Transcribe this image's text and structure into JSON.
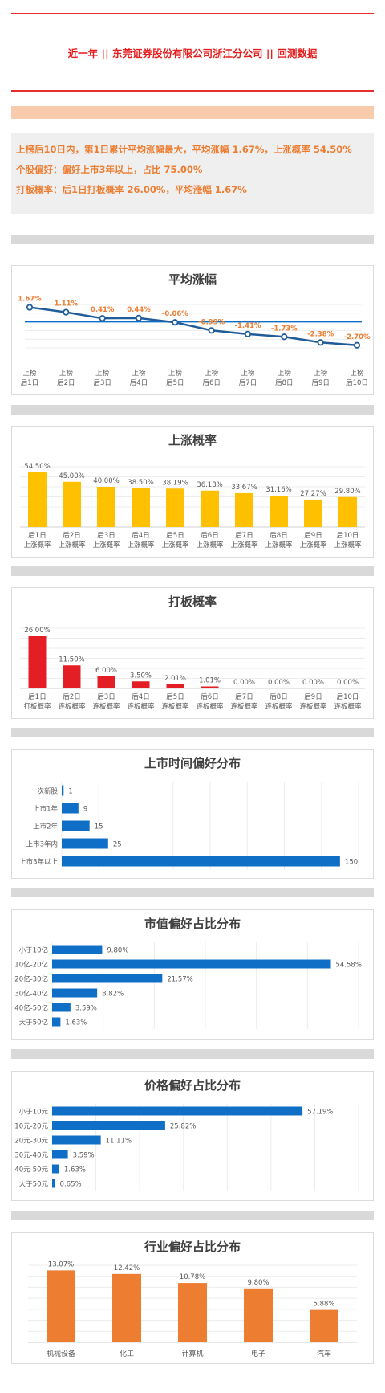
{
  "header": {
    "title": "近一年 || 东莞证券股份有限公司浙江分公司 || 回测数据"
  },
  "summary": {
    "line1": "上榜后10日内，第1日累计平均涨幅最大，平均涨幅 1.67%，上涨概率 54.50%",
    "line2": "个股偏好：偏好上市3年以上，占比 75.00%",
    "line3": "打板概率：后1日打板概率 26.00%，平均涨幅 1.67%"
  },
  "colors": {
    "accent_red": "#e61e1e",
    "line_blue": "#1f5c99",
    "bar_yellow": "#ffc000",
    "bar_red": "#e31e24",
    "bar_blue": "#0f6fc6",
    "bar_orange": "#ed7d31",
    "label_orange": "#ed7d31"
  },
  "chart_data": [
    {
      "id": "avg",
      "type": "line",
      "title": "平均涨幅",
      "categories": [
        "上榜后1日",
        "上榜后2日",
        "上榜后3日",
        "上榜后4日",
        "上榜后5日",
        "上榜后6日",
        "上榜后7日",
        "上榜后8日",
        "上榜后9日",
        "上榜后10日"
      ],
      "values": [
        1.67,
        1.11,
        0.41,
        0.44,
        -0.06,
        -0.99,
        -1.41,
        -1.73,
        -2.38,
        -2.7
      ],
      "labels": [
        "1.67%",
        "1.11%",
        "0.41%",
        "0.44%",
        "-0.06%",
        "-0.99%",
        "-1.41%",
        "-1.73%",
        "-2.38%",
        "-2.70%"
      ],
      "reference_line": 0
    },
    {
      "id": "rise",
      "type": "bar",
      "title": "上涨概率",
      "categories": [
        "后1日上涨概率",
        "后2日上涨概率",
        "后3日上涨概率",
        "后4日上涨概率",
        "后5日上涨概率",
        "后6日上涨概率",
        "后7日上涨概率",
        "后8日上涨概率",
        "后9日上涨概率",
        "后10日上涨概率"
      ],
      "values": [
        54.5,
        45.0,
        40.0,
        38.5,
        38.19,
        36.18,
        33.67,
        31.16,
        27.27,
        29.8
      ],
      "labels": [
        "54.50%",
        "45.00%",
        "40.00%",
        "38.50%",
        "38.19%",
        "36.18%",
        "33.67%",
        "31.16%",
        "27.27%",
        "29.80%"
      ]
    },
    {
      "id": "limit",
      "type": "bar",
      "title": "打板概率",
      "categories": [
        "后1日打板概率",
        "后2日连板概率",
        "后3日连板概率",
        "后4日连板概率",
        "后5日连板概率",
        "后6日连板概率",
        "后7日连板概率",
        "后8日连板概率",
        "后9日连板概率",
        "后10日连板概率"
      ],
      "values": [
        26.0,
        11.5,
        6.0,
        3.5,
        2.01,
        1.01,
        0.0,
        0.0,
        0.0,
        0.0
      ],
      "labels": [
        "26.00%",
        "11.50%",
        "6.00%",
        "3.50%",
        "2.01%",
        "1.01%",
        "0.00%",
        "0.00%",
        "0.00%",
        "0.00%"
      ]
    },
    {
      "id": "listing",
      "type": "bar",
      "orientation": "horizontal",
      "title": "上市时间偏好分布",
      "categories": [
        "次新股",
        "上市1年",
        "上市2年",
        "上市3年内",
        "上市3年以上"
      ],
      "values": [
        1,
        9,
        15,
        25,
        150
      ],
      "labels": [
        "1",
        "9",
        "15",
        "25",
        "150"
      ]
    },
    {
      "id": "mcap",
      "type": "bar",
      "orientation": "horizontal",
      "title": "市值偏好占比分布",
      "categories": [
        "小于10亿",
        "10亿-20亿",
        "20亿-30亿",
        "30亿-40亿",
        "40亿-50亿",
        "大于50亿"
      ],
      "values": [
        9.8,
        54.58,
        21.57,
        8.82,
        3.59,
        1.63
      ],
      "labels": [
        "9.80%",
        "54.58%",
        "21.57%",
        "8.82%",
        "3.59%",
        "1.63%"
      ]
    },
    {
      "id": "price",
      "type": "bar",
      "orientation": "horizontal",
      "title": "价格偏好占比分布",
      "categories": [
        "小于10元",
        "10元-20元",
        "20元-30元",
        "30元-40元",
        "40元-50元",
        "大于50元"
      ],
      "values": [
        57.19,
        25.82,
        11.11,
        3.59,
        1.63,
        0.65
      ],
      "labels": [
        "57.19%",
        "25.82%",
        "11.11%",
        "3.59%",
        "1.63%",
        "0.65%"
      ]
    },
    {
      "id": "industry",
      "type": "bar",
      "title": "行业偏好占比分布",
      "categories": [
        "机械设备",
        "化工",
        "计算机",
        "电子",
        "汽车"
      ],
      "values": [
        13.07,
        12.42,
        10.78,
        9.8,
        5.88
      ],
      "labels": [
        "13.07%",
        "12.42%",
        "10.78%",
        "9.80%",
        "5.88%"
      ]
    }
  ]
}
